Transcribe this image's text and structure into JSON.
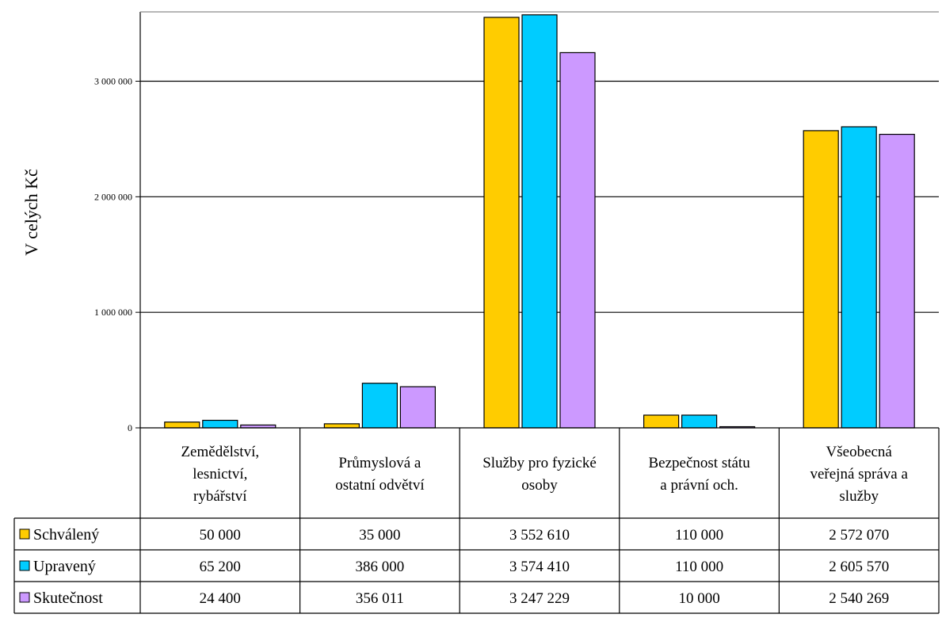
{
  "chart_data": {
    "type": "bar",
    "ylabel": "V celých Kč",
    "ylim": [
      0,
      3600000
    ],
    "yticks": [
      {
        "value": 0,
        "label": "0"
      },
      {
        "value": 1000000,
        "label": "1 000 000"
      },
      {
        "value": 2000000,
        "label": "2 000 000"
      },
      {
        "value": 3000000,
        "label": "3 000 000"
      }
    ],
    "grid": true,
    "legend": "bottom-table",
    "categories": [
      [
        "Zemědělství,",
        "lesnictví,",
        "rybářství"
      ],
      [
        "Průmyslová a",
        "ostatní odvětví"
      ],
      [
        "Služby pro fyzické",
        "osoby"
      ],
      [
        "Bezpečnost státu",
        "a právní och."
      ],
      [
        "Všeobecná",
        "veřejná správa a",
        "služby"
      ]
    ],
    "series": [
      {
        "name": "Schválený",
        "color": "#ffcc00",
        "values": [
          50000,
          35000,
          3552610,
          110000,
          2572070
        ],
        "labels": [
          "50 000",
          "35 000",
          "3 552 610",
          "110 000",
          "2 572 070"
        ]
      },
      {
        "name": "Upravený",
        "color": "#00ccff",
        "values": [
          65200,
          386000,
          3574410,
          110000,
          2605570
        ],
        "labels": [
          "65 200",
          "386 000",
          "3 574 410",
          "110 000",
          "2 605 570"
        ]
      },
      {
        "name": "Skutečnost",
        "color": "#cc99ff",
        "values": [
          24400,
          356011,
          3247229,
          10000,
          2540269
        ],
        "labels": [
          "24 400",
          "356 011",
          "3 247 229",
          "10 000",
          "2 540 269"
        ]
      }
    ]
  }
}
